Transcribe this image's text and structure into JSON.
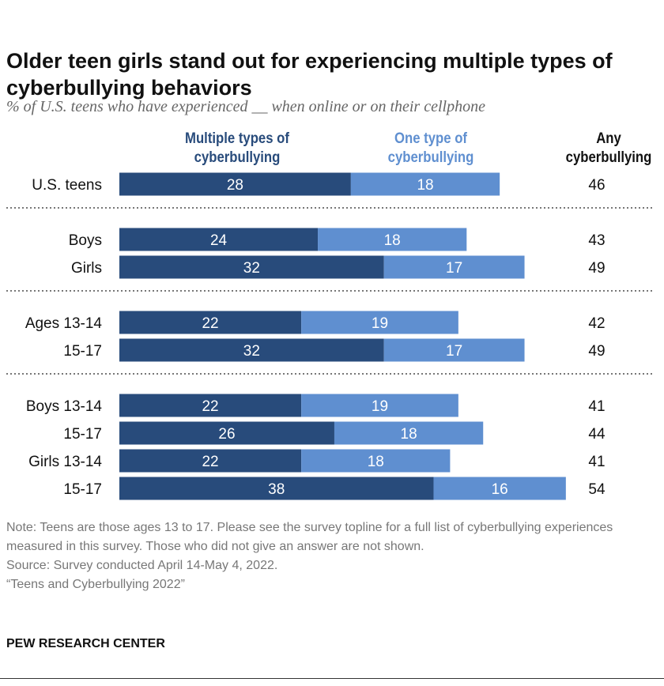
{
  "title": "Older teen girls stand out for experiencing multiple types of cyberbullying behaviors",
  "subtitle": "% of U.S. teens who have experienced __ when online or on their cellphone",
  "colors": {
    "multiple": "#284b7b",
    "one": "#5f8fd0"
  },
  "chart_data": {
    "type": "bar",
    "orientation": "horizontal-stacked",
    "categories": [
      "U.S. teens",
      "Boys",
      "Girls",
      "Ages 13-14",
      "15-17",
      "Boys 13-14",
      "15-17",
      "Girls 13-14",
      "15-17"
    ],
    "series": [
      {
        "name": "Multiple types of cyberbullying",
        "values": [
          28,
          24,
          32,
          22,
          32,
          22,
          26,
          22,
          38
        ]
      },
      {
        "name": "One type of cyberbullying",
        "values": [
          18,
          18,
          17,
          19,
          17,
          19,
          18,
          18,
          16
        ]
      }
    ],
    "total_label": "Any cyberbullying",
    "totals": [
      46,
      43,
      49,
      42,
      49,
      41,
      44,
      41,
      54
    ],
    "groups": [
      [
        0
      ],
      [
        1,
        2
      ],
      [
        3,
        4
      ],
      [
        5,
        6,
        7,
        8
      ]
    ]
  },
  "note": "Note: Teens are those ages 13 to 17. Please see the survey topline for a full list of cyberbullying experiences measured in this survey. Those who did not give an answer are not shown.",
  "source": "Source: Survey conducted April 14-May 4, 2022.",
  "report": "“Teens and Cyberbullying 2022”",
  "brand": "PEW RESEARCH CENTER"
}
